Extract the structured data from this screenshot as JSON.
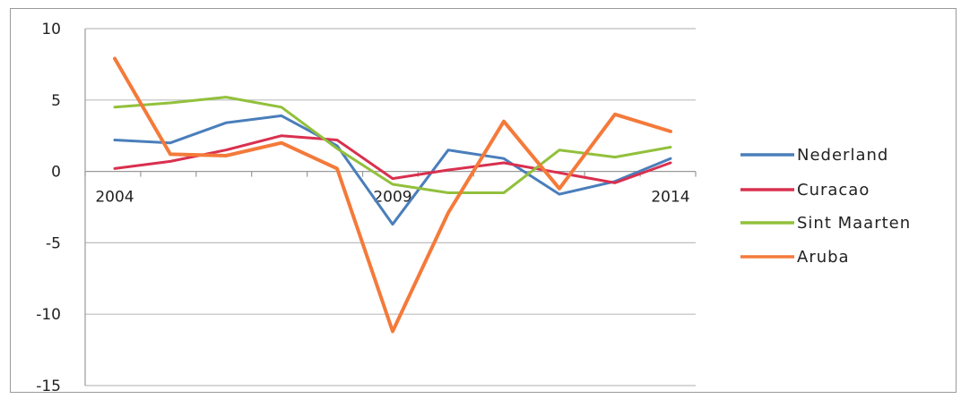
{
  "chart_data": {
    "type": "line",
    "title": "",
    "xlabel": "",
    "ylabel": "",
    "x": [
      2004,
      2005,
      2006,
      2007,
      2008,
      2009,
      2010,
      2011,
      2012,
      2013,
      2014
    ],
    "x_tick_labels": [
      "2004",
      "2009",
      "2014"
    ],
    "ylim": [
      -15,
      10
    ],
    "y_ticks": [
      10,
      5,
      0,
      -5,
      -10,
      -15
    ],
    "grid": "horizontal",
    "legend_position": "right",
    "series": [
      {
        "name": "Nederland",
        "color": "#4a7ebb",
        "values": [
          2.2,
          2.0,
          3.4,
          3.9,
          1.8,
          -3.7,
          1.5,
          0.9,
          -1.6,
          -0.7,
          0.9
        ]
      },
      {
        "name": "Curacao",
        "color": "#d9304f",
        "values": [
          0.2,
          0.7,
          1.5,
          2.5,
          2.2,
          -0.5,
          0.1,
          0.6,
          -0.1,
          -0.8,
          0.6
        ]
      },
      {
        "name": "Sint Maarten",
        "color": "#92c03c",
        "values": [
          4.5,
          4.8,
          5.2,
          4.5,
          1.6,
          -0.9,
          -1.5,
          -1.5,
          1.5,
          1.0,
          1.7
        ]
      },
      {
        "name": "Aruba",
        "color": "#f47a3a",
        "values": [
          7.9,
          1.2,
          1.1,
          2.0,
          0.2,
          -11.2,
          -2.9,
          3.5,
          -1.2,
          4.0,
          2.8
        ]
      }
    ]
  }
}
